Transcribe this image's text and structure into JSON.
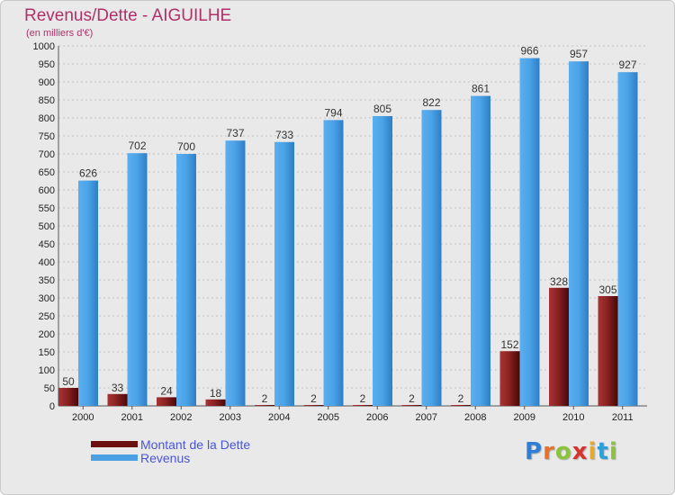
{
  "title": "Revenus/Dette - AIGUILHE",
  "subtitle": "(en milliers d'€)",
  "logo": {
    "letters": [
      "P",
      "r",
      "o",
      "x",
      "i",
      "t",
      "i"
    ],
    "colors": [
      "#2f7fd6",
      "#e8702a",
      "#8bc43c",
      "#d8342e",
      "#e8a92a",
      "#2f9fd6",
      "#8bc43c"
    ]
  },
  "colors": {
    "dette": "#7a1b1b",
    "revenus": "#4aa0e3",
    "title": "#b0306a",
    "legend_text": "#4a55d8"
  },
  "legend": [
    {
      "label": "Montant de la Dette",
      "color": "#6b0f0f"
    },
    {
      "label": "Revenus",
      "color": "#4aa0e3"
    }
  ],
  "chart_data": {
    "type": "bar",
    "title": "Revenus/Dette - AIGUILHE",
    "subtitle": "(en milliers d'€)",
    "categories": [
      "2000",
      "2001",
      "2002",
      "2003",
      "2004",
      "2005",
      "2006",
      "2007",
      "2008",
      "2009",
      "2010",
      "2011"
    ],
    "series": [
      {
        "name": "Montant de la Dette",
        "values": [
          50,
          33,
          24,
          18,
          2,
          2,
          2,
          2,
          2,
          152,
          328,
          305
        ]
      },
      {
        "name": "Revenus",
        "values": [
          626,
          702,
          700,
          737,
          733,
          794,
          805,
          822,
          861,
          966,
          957,
          927
        ]
      }
    ],
    "ylim": [
      0,
      1000
    ],
    "yticks": [
      0,
      50,
      100,
      150,
      200,
      250,
      300,
      350,
      400,
      450,
      500,
      550,
      600,
      650,
      700,
      750,
      800,
      850,
      900,
      950,
      1000
    ],
    "grid": true,
    "legend_position": "bottom-left"
  }
}
